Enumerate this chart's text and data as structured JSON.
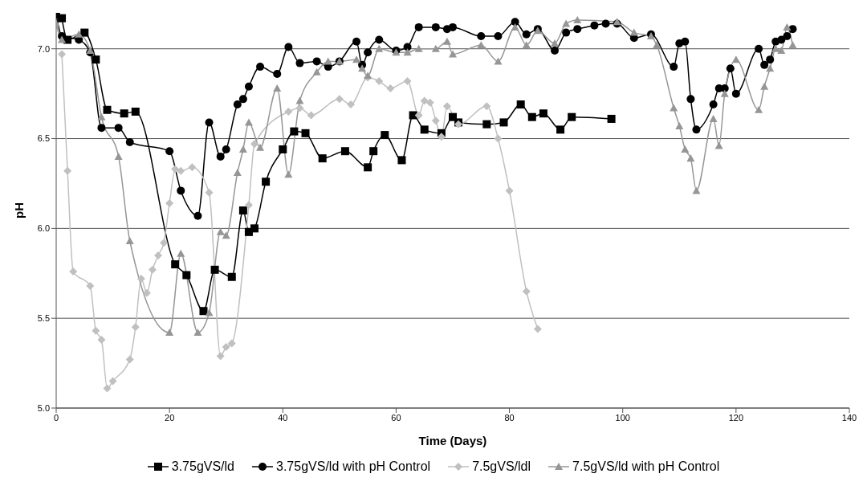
{
  "chart_data": {
    "type": "line",
    "xlabel": "Time (Days)",
    "ylabel": "pH",
    "xlim": [
      0,
      140
    ],
    "xticks": [
      0,
      20,
      40,
      60,
      80,
      100,
      120,
      140
    ],
    "ylim": [
      5.0,
      7.2
    ],
    "yticks": [
      {
        "value": 5.0,
        "label": "5.0"
      },
      {
        "value": 5.5,
        "label": "5.5"
      },
      {
        "value": 6.0,
        "label": "6.0"
      },
      {
        "value": 6.5,
        "label": "6.5"
      },
      {
        "value": 7.0,
        "label": "7.0"
      }
    ],
    "grid": "y",
    "legend": "bottom",
    "series": [
      {
        "name": "3.75gVS/ld",
        "color": "#000000",
        "marker": "square",
        "x": [
          1,
          2,
          5,
          7,
          9,
          12,
          14,
          21,
          23,
          26,
          28,
          31,
          33,
          34,
          35,
          37,
          40,
          42,
          44,
          47,
          51,
          55,
          56,
          58,
          61,
          63,
          65,
          68,
          70,
          71,
          76,
          79,
          82,
          84,
          86,
          89,
          91,
          98
        ],
        "values": [
          7.17,
          7.05,
          7.09,
          6.94,
          6.66,
          6.64,
          6.65,
          5.8,
          5.74,
          5.54,
          5.77,
          5.73,
          6.1,
          5.98,
          6.0,
          6.26,
          6.44,
          6.54,
          6.53,
          6.39,
          6.43,
          6.34,
          6.43,
          6.52,
          6.38,
          6.63,
          6.55,
          6.53,
          6.62,
          6.59,
          6.58,
          6.59,
          6.69,
          6.62,
          6.64,
          6.55,
          6.62,
          6.61
        ]
      },
      {
        "name": "3.75gVS/ld with pH Control",
        "color": "#000000",
        "marker": "circle",
        "x": [
          0,
          1,
          4,
          6,
          8,
          11,
          13,
          20,
          22,
          25,
          27,
          29,
          30,
          32,
          33,
          34,
          36,
          39,
          41,
          43,
          46,
          48,
          50,
          53,
          54,
          55,
          57,
          60,
          62,
          64,
          67,
          69,
          70,
          75,
          78,
          81,
          83,
          85,
          88,
          90,
          92,
          95,
          97,
          99,
          102,
          105,
          109,
          110,
          111,
          112,
          113,
          116,
          117,
          118,
          119,
          120,
          124,
          125,
          126,
          127,
          128,
          129,
          130
        ],
        "values": [
          7.19,
          7.07,
          7.05,
          6.98,
          6.56,
          6.56,
          6.48,
          6.43,
          6.21,
          6.07,
          6.59,
          6.4,
          6.44,
          6.69,
          6.72,
          6.79,
          6.9,
          6.86,
          7.01,
          6.92,
          6.93,
          6.9,
          6.93,
          7.04,
          6.91,
          6.98,
          7.05,
          6.99,
          7.01,
          7.12,
          7.12,
          7.11,
          7.12,
          7.07,
          7.07,
          7.15,
          7.08,
          7.11,
          6.99,
          7.09,
          7.11,
          7.13,
          7.14,
          7.14,
          7.06,
          7.08,
          6.9,
          7.03,
          7.04,
          6.72,
          6.55,
          6.69,
          6.78,
          6.78,
          6.89,
          6.75,
          7.0,
          6.91,
          6.94,
          7.04,
          7.05,
          7.07,
          7.11
        ]
      },
      {
        "name": "7.5gVS/ldl",
        "color": "#c0c0c0",
        "marker": "diamond",
        "x": [
          1,
          2,
          3,
          6,
          7,
          8,
          9,
          10,
          13,
          14,
          15,
          16,
          17,
          18,
          19,
          20,
          21,
          22,
          24,
          27,
          29,
          30,
          31,
          34,
          35,
          41,
          43,
          45,
          50,
          52,
          55,
          57,
          59,
          62,
          64,
          65,
          66,
          67,
          68,
          69,
          71,
          76,
          78,
          80,
          83,
          85
        ],
        "values": [
          6.97,
          6.32,
          5.76,
          5.68,
          5.43,
          5.38,
          5.11,
          5.15,
          5.27,
          5.45,
          5.72,
          5.64,
          5.77,
          5.85,
          5.92,
          6.14,
          6.33,
          6.32,
          6.34,
          6.2,
          5.29,
          5.34,
          5.36,
          6.13,
          6.47,
          6.65,
          6.67,
          6.63,
          6.72,
          6.69,
          6.84,
          6.82,
          6.78,
          6.82,
          6.63,
          6.71,
          6.7,
          6.6,
          6.51,
          6.68,
          6.58,
          6.68,
          6.5,
          6.21,
          5.65,
          5.44
        ]
      },
      {
        "name": "7.5gVS/ld with pH Control",
        "color": "#969696",
        "marker": "triangle",
        "x": [
          0,
          1,
          4,
          6,
          8,
          11,
          13,
          20,
          22,
          25,
          27,
          29,
          30,
          32,
          33,
          34,
          36,
          39,
          41,
          43,
          46,
          48,
          50,
          53,
          54,
          55,
          57,
          60,
          62,
          64,
          67,
          69,
          70,
          75,
          78,
          81,
          83,
          85,
          88,
          90,
          92,
          99,
          102,
          105,
          106,
          109,
          110,
          111,
          112,
          113,
          116,
          117,
          118,
          120,
          124,
          125,
          126,
          127,
          128,
          129,
          130
        ],
        "values": [
          7.14,
          7.05,
          7.08,
          6.99,
          6.62,
          6.4,
          5.93,
          5.42,
          5.86,
          5.42,
          5.53,
          5.98,
          5.96,
          6.31,
          6.44,
          6.59,
          6.45,
          6.78,
          6.3,
          6.71,
          6.87,
          6.93,
          6.93,
          6.94,
          6.89,
          6.85,
          7.0,
          6.98,
          6.98,
          7.0,
          7.0,
          7.04,
          6.97,
          7.02,
          6.93,
          7.12,
          7.02,
          7.1,
          7.03,
          7.14,
          7.16,
          7.15,
          7.09,
          7.07,
          7.02,
          6.67,
          6.57,
          6.44,
          6.39,
          6.21,
          6.61,
          6.46,
          6.75,
          6.94,
          6.66,
          6.79,
          6.89,
          7.0,
          6.99,
          7.12,
          7.02
        ]
      }
    ]
  }
}
